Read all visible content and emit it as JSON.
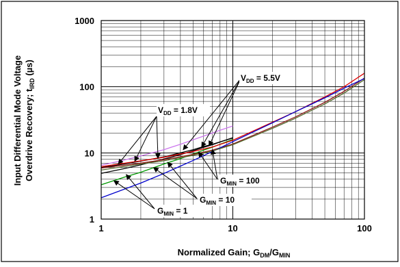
{
  "chart_data": {
    "type": "line",
    "xscale": "log",
    "yscale": "log",
    "xlim": [
      1,
      100
    ],
    "ylim": [
      1,
      1000
    ],
    "grid": true,
    "xlabel": {
      "main": "Normalized Gain; G",
      "sub1": "DM",
      "mid": "/G",
      "sub2": "MIN"
    },
    "ylabel": {
      "line1": "Input Differential Mode Voltage",
      "line2": "Overdrive Recovery; t",
      "sub": "IRD",
      "unit": " (µs)"
    },
    "x_ticks": [
      {
        "value": 1,
        "label": "1"
      },
      {
        "value": 10,
        "label": "10"
      },
      {
        "value": 100,
        "label": "100"
      }
    ],
    "y_ticks": [
      {
        "value": 1,
        "label": "1"
      },
      {
        "value": 10,
        "label": "10"
      },
      {
        "value": 100,
        "label": "100"
      },
      {
        "value": 1000,
        "label": "1000"
      }
    ],
    "series": [
      {
        "color": "#cc77ee",
        "x": [
          1,
          1.5,
          2,
          3,
          4,
          5,
          6,
          7,
          8,
          10
        ],
        "y": [
          6.5,
          7.8,
          9.0,
          11.2,
          13.5,
          15.8,
          18.0,
          20.0,
          22.0,
          25.5
        ]
      },
      {
        "color": "#000000",
        "x": [
          1,
          1.5,
          2,
          3,
          4,
          5,
          6,
          7,
          8,
          10
        ],
        "y": [
          6.0,
          6.8,
          7.5,
          8.7,
          10.0,
          11.2,
          12.5,
          13.5,
          14.7,
          16.8
        ]
      },
      {
        "color": "#000000",
        "x": [
          1,
          1.5,
          2,
          3,
          4,
          5,
          6,
          7,
          8,
          10
        ],
        "y": [
          4.9,
          5.8,
          6.6,
          8.1,
          9.4,
          10.8,
          12.1,
          13.3,
          14.6,
          17.0
        ]
      },
      {
        "color": "#009900",
        "x": [
          1,
          1.5,
          2,
          3,
          4,
          5,
          6,
          7,
          8,
          10
        ],
        "y": [
          3.3,
          4.3,
          5.1,
          6.8,
          8.2,
          9.6,
          11.0,
          12.2,
          13.5,
          16.0
        ]
      },
      {
        "color": "#dd0000",
        "x": [
          1,
          2,
          3,
          5,
          7,
          10,
          20,
          30,
          50,
          70,
          100
        ],
        "y": [
          6.2,
          7.6,
          8.6,
          10.5,
          12.3,
          15.5,
          29.0,
          42.0,
          70.0,
          100.0,
          160.0
        ]
      },
      {
        "color": "#8b1a1a",
        "x": [
          1,
          2,
          3,
          5,
          7,
          10,
          20,
          30,
          50,
          70,
          100
        ],
        "y": [
          5.9,
          7.0,
          7.9,
          9.5,
          11.0,
          13.6,
          24.5,
          35.0,
          58.0,
          85.0,
          135.0
        ]
      },
      {
        "color": "#0000cc",
        "x": [
          1,
          2,
          3,
          5,
          7,
          10,
          20,
          30,
          50,
          70,
          100
        ],
        "y": [
          2.1,
          3.5,
          4.9,
          7.7,
          10.5,
          14.8,
          28.5,
          42.0,
          68.0,
          95.0,
          133.0
        ]
      },
      {
        "color": "#556b2f",
        "x": [
          1,
          2,
          3,
          5,
          7,
          10,
          20,
          30,
          50,
          70,
          100
        ],
        "y": [
          5.5,
          6.8,
          7.6,
          9.2,
          10.7,
          13.3,
          23.5,
          33.5,
          55.0,
          80.0,
          128.0
        ]
      }
    ],
    "annotations": [
      {
        "id": "vdd-55",
        "text_main": "V",
        "sub": "DD",
        "text_tail": " = 5.5V",
        "arrow_targets": [
          [
            4.2,
            11.2
          ],
          [
            5.8,
            12.3
          ],
          [
            6.6,
            12.8
          ]
        ]
      },
      {
        "id": "vdd-18",
        "text_main": "V",
        "sub": "DD",
        "text_tail": " = 1.8V",
        "arrow_targets": [
          [
            1.35,
            6.8
          ],
          [
            1.8,
            7.5
          ],
          [
            2.7,
            8.3
          ]
        ]
      },
      {
        "id": "gmin-100",
        "text_main": "G",
        "sub": "MIN",
        "text_tail": " = 100",
        "arrow_targets": [
          [
            5.5,
            10.3
          ],
          [
            7.0,
            11.2
          ]
        ]
      },
      {
        "id": "gmin-10",
        "text_main": "G",
        "sub": "MIN",
        "text_tail": " = 10",
        "arrow_targets": [
          [
            2.5,
            6.0
          ],
          [
            3.2,
            7.2
          ]
        ]
      },
      {
        "id": "gmin-1",
        "text_main": "G",
        "sub": "MIN",
        "text_tail": " = 1",
        "arrow_targets": [
          [
            1.25,
            3.8
          ],
          [
            1.55,
            4.7
          ]
        ]
      }
    ]
  }
}
